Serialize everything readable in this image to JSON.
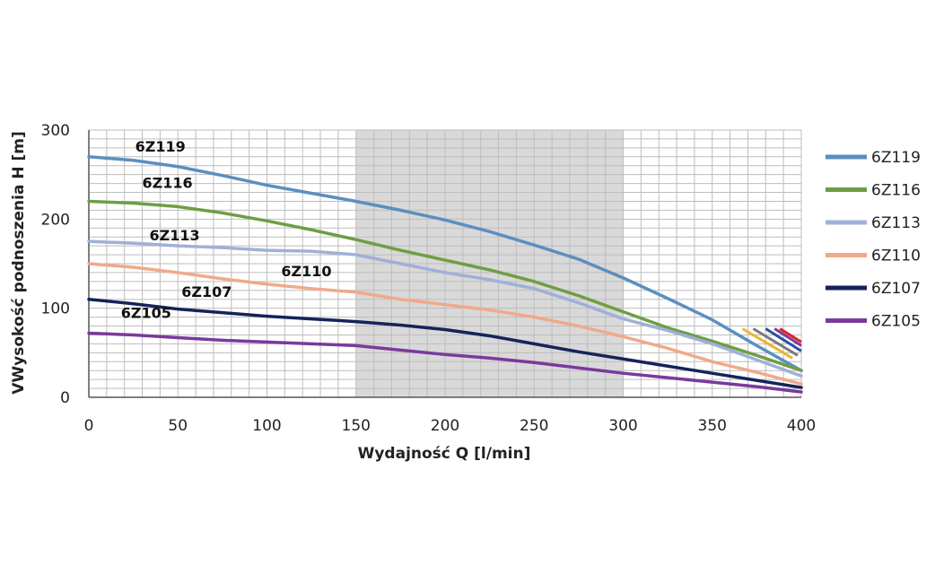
{
  "chart_data": {
    "type": "line",
    "xlabel": "Wydajność Q [l/min]",
    "ylabel": "VWysokość podnoszenia H [m]",
    "xlim": [
      0,
      400
    ],
    "ylim": [
      0,
      300
    ],
    "xticks": [
      0,
      50,
      100,
      150,
      200,
      250,
      300,
      350,
      400
    ],
    "yticks": [
      0,
      100,
      200,
      300
    ],
    "grid": true,
    "highlight_range": [
      150,
      300
    ],
    "highlight_color": "#d9d9d9",
    "legend_position": "right",
    "series": [
      {
        "name": "6Z119",
        "color": "#5b8fbf",
        "x": [
          0,
          25,
          50,
          75,
          100,
          125,
          150,
          175,
          200,
          225,
          250,
          275,
          300,
          325,
          350,
          375,
          400
        ],
        "y": [
          270,
          266,
          259,
          249,
          238,
          229,
          220,
          210,
          199,
          186,
          171,
          155,
          134,
          111,
          87,
          58,
          30
        ]
      },
      {
        "name": "6Z116",
        "color": "#6e9e44",
        "x": [
          0,
          25,
          50,
          75,
          100,
          125,
          150,
          175,
          200,
          225,
          250,
          275,
          300,
          325,
          350,
          375,
          400
        ],
        "y": [
          220,
          218,
          214,
          207,
          198,
          188,
          177,
          165,
          154,
          143,
          130,
          114,
          96,
          78,
          63,
          47,
          30
        ]
      },
      {
        "name": "6Z113",
        "color": "#9fb0d8",
        "x": [
          0,
          25,
          50,
          75,
          100,
          125,
          150,
          175,
          200,
          225,
          250,
          275,
          300,
          325,
          350,
          375,
          400
        ],
        "y": [
          175,
          173,
          170,
          168,
          165,
          164,
          160,
          150,
          140,
          132,
          122,
          106,
          88,
          75,
          60,
          42,
          24
        ]
      },
      {
        "name": "6Z110",
        "color": "#f0a98a",
        "x": [
          0,
          25,
          50,
          75,
          100,
          125,
          150,
          175,
          200,
          225,
          250,
          275,
          300,
          325,
          350,
          375,
          400
        ],
        "y": [
          150,
          146,
          140,
          133,
          127,
          122,
          118,
          110,
          104,
          98,
          90,
          80,
          68,
          55,
          40,
          28,
          15
        ]
      },
      {
        "name": "6Z107",
        "color": "#14245a",
        "x": [
          0,
          25,
          50,
          75,
          100,
          125,
          150,
          175,
          200,
          225,
          250,
          275,
          300,
          325,
          350,
          375,
          400
        ],
        "y": [
          110,
          105,
          99,
          95,
          91,
          88,
          85,
          81,
          76,
          69,
          60,
          51,
          43,
          35,
          27,
          19,
          11
        ]
      },
      {
        "name": "6Z105",
        "color": "#7a3a9c",
        "x": [
          0,
          25,
          50,
          75,
          100,
          125,
          150,
          175,
          200,
          225,
          250,
          275,
          300,
          325,
          350,
          375,
          400
        ],
        "y": [
          72,
          70,
          67,
          64,
          62,
          60,
          58,
          53,
          48,
          44,
          39,
          33,
          27,
          22,
          17,
          12,
          6
        ]
      }
    ],
    "series_labels": [
      {
        "text": "6Z119",
        "x": 26,
        "y": 276
      },
      {
        "text": "6Z116",
        "x": 30,
        "y": 235
      },
      {
        "text": "6Z113",
        "x": 34,
        "y": 176
      },
      {
        "text": "6Z110",
        "x": 108,
        "y": 136
      },
      {
        "text": "6Z107",
        "x": 52,
        "y": 113
      },
      {
        "text": "6Z105",
        "x": 18,
        "y": 89
      }
    ],
    "extra_lines": [
      {
        "color": "#e8b630",
        "x": [
          367,
          395
        ],
        "y": [
          77,
          44
        ]
      },
      {
        "color": "#7a7a7a",
        "x": [
          373,
          398
        ],
        "y": [
          77,
          47
        ]
      },
      {
        "color": "#2b4f9e",
        "x": [
          380,
          400
        ],
        "y": [
          77,
          52
        ]
      },
      {
        "color": "#7a3a9c",
        "x": [
          385,
          400
        ],
        "y": [
          77,
          58
        ]
      },
      {
        "color": "#e02020",
        "x": [
          388,
          400
        ],
        "y": [
          77,
          62
        ]
      }
    ]
  }
}
